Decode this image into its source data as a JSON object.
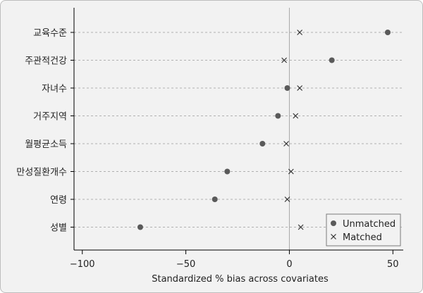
{
  "chart_data": {
    "type": "scatter",
    "xlabel": "Standardized % bias across covariates",
    "xlim": [
      -104,
      55
    ],
    "xticks": [
      -100,
      -50,
      0,
      50
    ],
    "xtick_labels": [
      "−100",
      "−50",
      "0",
      "50"
    ],
    "categories": [
      "교육수준",
      "주관적건강",
      "자녀수",
      "거주지역",
      "월평균소득",
      "만성질환개수",
      "연령",
      "성별"
    ],
    "series": [
      {
        "name": "Unmatched",
        "marker": "circle",
        "values": [
          47.5,
          20.5,
          -1,
          -5.5,
          -13,
          -30,
          -36,
          -72
        ]
      },
      {
        "name": "Matched",
        "marker": "x",
        "values": [
          5,
          -2.5,
          5,
          3,
          -1.5,
          0.8,
          -1,
          5.5
        ]
      }
    ],
    "reference_line_x": 0,
    "grid": "horizontal dashed",
    "legend": "bottom-right",
    "colors": {
      "marker": "#5a5a5a",
      "axis": "#000000",
      "grid": "#9a9a9a",
      "refline": "#a8a8a8",
      "background": "#f2f2f2"
    }
  }
}
